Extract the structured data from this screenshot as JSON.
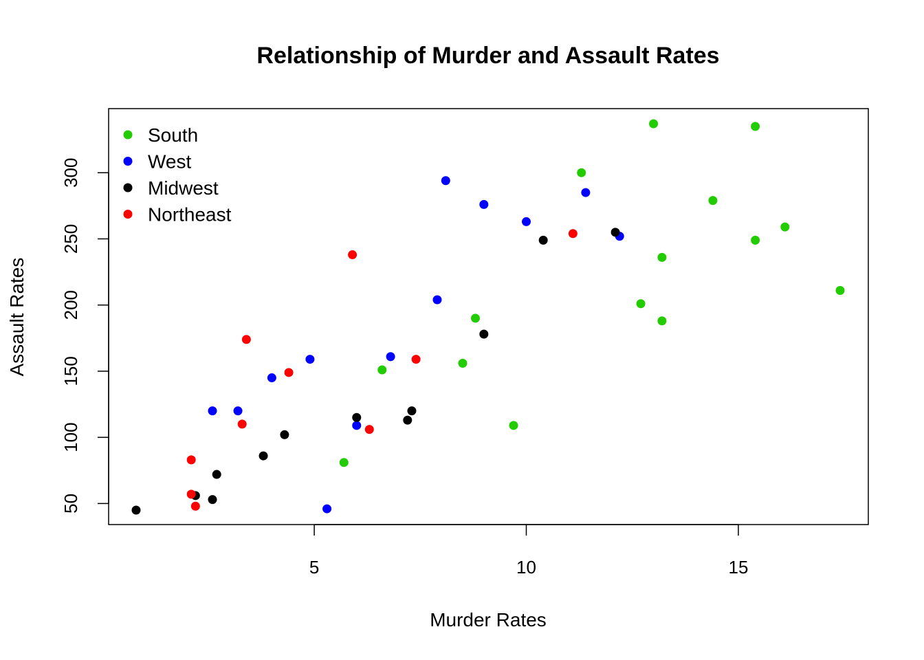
{
  "chart_data": {
    "type": "scatter",
    "title": "Relationship of Murder and Assault Rates",
    "xlabel": "Murder Rates",
    "ylabel": "Assault Rates",
    "xlim": [
      0.8,
      17.4
    ],
    "ylim": [
      45,
      337
    ],
    "x_ticks": [
      5,
      10,
      15
    ],
    "y_ticks": [
      50,
      100,
      150,
      200,
      250,
      300
    ],
    "grid": false,
    "legend_position": "top-left",
    "series": [
      {
        "name": "South",
        "color": "#22CC00",
        "x": [
          13.0,
          15.4,
          11.3,
          14.4,
          16.1,
          15.4,
          13.2,
          17.4,
          12.7,
          13.2,
          8.8,
          8.5,
          6.6,
          9.7,
          5.7
        ],
        "y": [
          337,
          335,
          300,
          279,
          259,
          249,
          236,
          211,
          201,
          188,
          190,
          156,
          151,
          109,
          81
        ]
      },
      {
        "name": "West",
        "color": "#0000FF",
        "x": [
          8.1,
          9.0,
          11.4,
          10.0,
          12.2,
          7.9,
          4.9,
          6.8,
          4.0,
          2.6,
          3.2,
          6.0,
          5.3
        ],
        "y": [
          294,
          276,
          285,
          263,
          252,
          204,
          159,
          161,
          145,
          120,
          120,
          109,
          46
        ]
      },
      {
        "name": "Midwest",
        "color": "#000000",
        "x": [
          12.1,
          10.4,
          9.0,
          6.0,
          7.3,
          7.2,
          4.3,
          3.8,
          2.7,
          2.2,
          2.6,
          0.8
        ],
        "y": [
          255,
          249,
          178,
          115,
          120,
          113,
          102,
          86,
          72,
          56,
          53,
          45
        ]
      },
      {
        "name": "Northeast",
        "color": "#FF0000",
        "x": [
          11.1,
          5.9,
          3.4,
          4.4,
          7.4,
          3.3,
          6.3,
          2.1,
          2.1,
          2.2
        ],
        "y": [
          254,
          238,
          174,
          149,
          159,
          110,
          106,
          83,
          57,
          48
        ]
      }
    ]
  }
}
